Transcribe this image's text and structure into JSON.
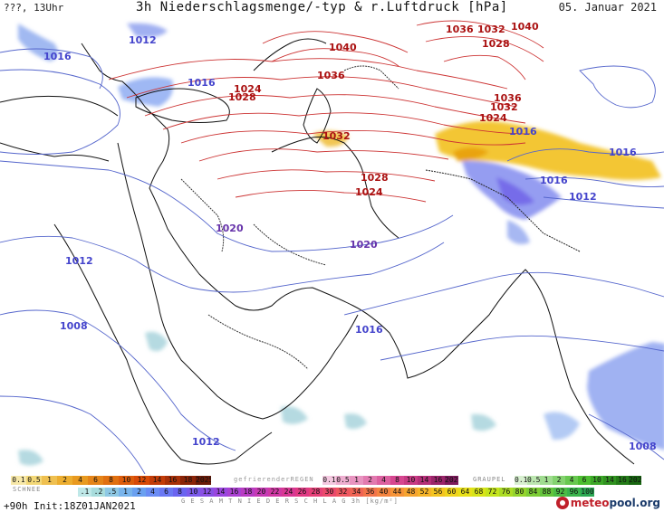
{
  "header": {
    "left": "???, 13Uhr",
    "title": "3h Niederschlagsmenge/-typ & r.Luftdruck [hPa]",
    "date": "05. Januar 2021"
  },
  "isobar_labels": [
    {
      "text": "1012",
      "color": "#4444cc"
    },
    {
      "text": "1016",
      "color": "#4444cc"
    },
    {
      "text": "1016",
      "color": "#4444cc"
    },
    {
      "text": "1024",
      "color": "#aa1111"
    },
    {
      "text": "1028",
      "color": "#aa1111"
    },
    {
      "text": "1040",
      "color": "#aa1111"
    },
    {
      "text": "1036",
      "color": "#aa1111"
    },
    {
      "text": "1036",
      "color": "#aa1111"
    },
    {
      "text": "1032",
      "color": "#aa1111"
    },
    {
      "text": "1040",
      "color": "#aa1111"
    },
    {
      "text": "1028",
      "color": "#aa1111"
    },
    {
      "text": "1036",
      "color": "#aa1111"
    },
    {
      "text": "1032",
      "color": "#aa1111"
    },
    {
      "text": "1024",
      "color": "#aa1111"
    },
    {
      "text": "1032",
      "color": "#aa1111"
    },
    {
      "text": "1016",
      "color": "#4444cc"
    },
    {
      "text": "1016",
      "color": "#4444cc"
    },
    {
      "text": "1028",
      "color": "#aa1111"
    },
    {
      "text": "1024",
      "color": "#aa1111"
    },
    {
      "text": "1016",
      "color": "#4444cc"
    },
    {
      "text": "1012",
      "color": "#4444cc"
    },
    {
      "text": "1020",
      "color": "#6633aa"
    },
    {
      "text": "1020",
      "color": "#6633aa"
    },
    {
      "text": "1012",
      "color": "#4444cc"
    },
    {
      "text": "1008",
      "color": "#4444cc"
    },
    {
      "text": "1016",
      "color": "#4444cc"
    },
    {
      "text": "1012",
      "color": "#4444cc"
    },
    {
      "text": "1008",
      "color": "#4444cc"
    }
  ],
  "legend": {
    "snow_label": "SCHNEE",
    "snow_values": [
      "0.1",
      "0.5",
      "1",
      "2",
      "4",
      "6",
      "8",
      "10",
      "12",
      "14",
      "16",
      "18",
      "2025+"
    ],
    "snow_colors": [
      "#f7e8a8",
      "#f3d878",
      "#efc050",
      "#ecae30",
      "#e89a20",
      "#e48418",
      "#e07010",
      "#dc5c0c",
      "#d84a08",
      "#c23c08",
      "#a83008",
      "#8a2408",
      "#6a1a08"
    ],
    "fr_label": "gefrierenderREGEN",
    "fr_values": [
      "0.1",
      "0.5",
      "1",
      "2",
      "4",
      "8",
      "10",
      "14",
      "16",
      "2025+"
    ],
    "fr_colors": [
      "#f4c8e0",
      "#eeaed0",
      "#e894c0",
      "#e27ab0",
      "#dc60a0",
      "#d64690",
      "#c83a84",
      "#b42e78",
      "#9a246a",
      "#7e1a5c"
    ],
    "graupel_label": "GRAUPEL",
    "graupel_values": [
      "0.1",
      "0.5",
      "1",
      "2",
      "4",
      "6",
      "10",
      "14",
      "16",
      "2025+"
    ],
    "graupel_colors": [
      "#d8f0d0",
      "#bce6b0",
      "#a0dc90",
      "#84d270",
      "#68c850",
      "#4cbe30",
      "#3ca828",
      "#309220",
      "#247c18",
      "#186610"
    ],
    "total_label": "G E S A M T N I E D E R S C H L A G   3h  [kg/m²]",
    "total_values": [
      ".1",
      ".2",
      ".5",
      "1",
      "2",
      "4",
      "6",
      "8",
      "10",
      "12",
      "14",
      "16",
      "18",
      "20",
      "22",
      "24",
      "26",
      "28",
      "30",
      "32",
      "34",
      "36",
      "40",
      "44",
      "48",
      "52",
      "56",
      "60",
      "64",
      "68",
      "72",
      "76",
      "80",
      "84",
      "88",
      "92",
      "96",
      "100"
    ],
    "total_colors": [
      "#bfe8e8",
      "#a8dcdc",
      "#8ec8e4",
      "#78b4ec",
      "#6aa0f0",
      "#6a8cf4",
      "#6a78f4",
      "#6a64f0",
      "#7a5aea",
      "#8a50e4",
      "#9a46de",
      "#aa40d2",
      "#b83cc4",
      "#c63ab4",
      "#d038a4",
      "#d83894",
      "#e03a84",
      "#e64078",
      "#ea4a6c",
      "#ee5660",
      "#f06454",
      "#f2744a",
      "#f48440",
      "#f69438",
      "#f6a430",
      "#f6b428",
      "#f4c420",
      "#f0d41c",
      "#e8e018",
      "#d8e418",
      "#c4e41c",
      "#acdc24",
      "#94d42c",
      "#7ccc34",
      "#64c43c",
      "#4cbc44",
      "#3ab44c",
      "#2ca854"
    ],
    "run_info": "+90h Init:18Z01JAN2021",
    "logo_prefix": "meteo",
    "logo_suffix": "pool.org"
  }
}
